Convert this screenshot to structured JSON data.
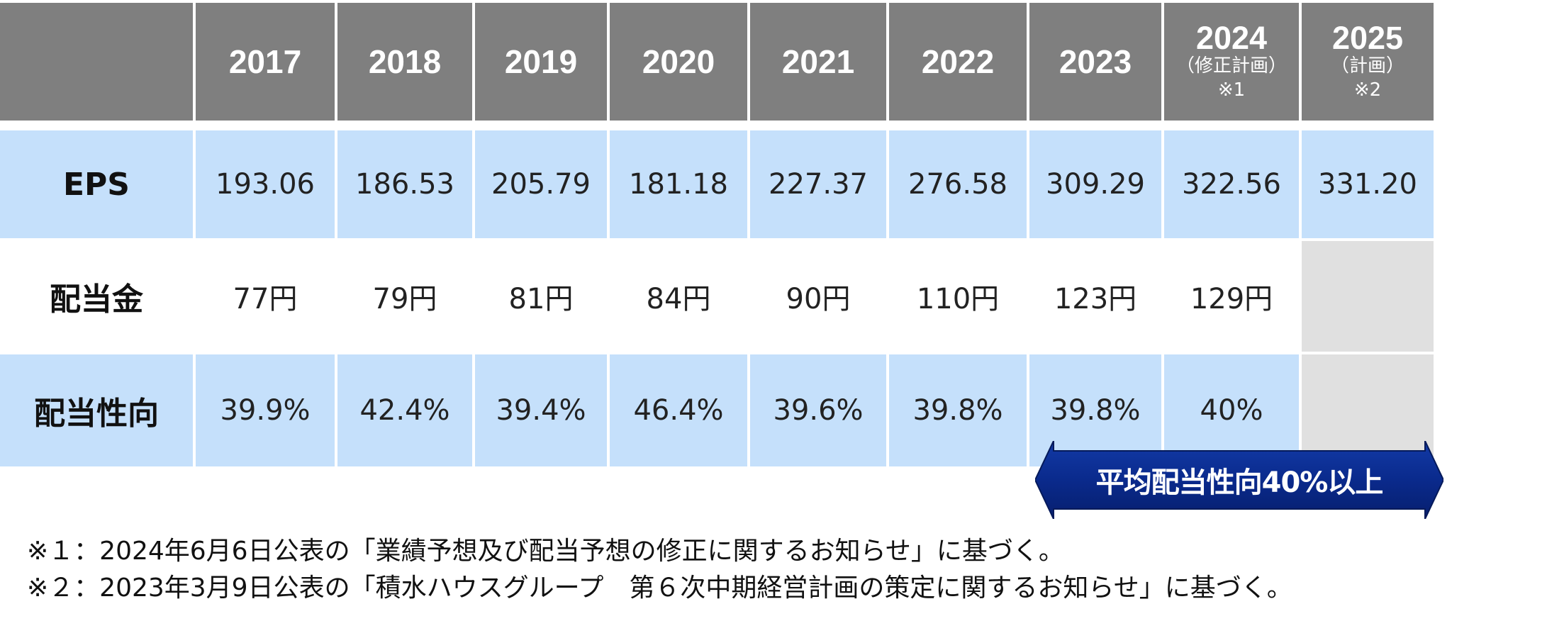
{
  "table": {
    "years": [
      {
        "year": "2017",
        "sub1": "",
        "sub2": ""
      },
      {
        "year": "2018",
        "sub1": "",
        "sub2": ""
      },
      {
        "year": "2019",
        "sub1": "",
        "sub2": ""
      },
      {
        "year": "2020",
        "sub1": "",
        "sub2": ""
      },
      {
        "year": "2021",
        "sub1": "",
        "sub2": ""
      },
      {
        "year": "2022",
        "sub1": "",
        "sub2": ""
      },
      {
        "year": "2023",
        "sub1": "",
        "sub2": ""
      },
      {
        "year": "2024",
        "sub1": "（修正計画）",
        "sub2": "※1"
      },
      {
        "year": "2025",
        "sub1": "（計画）",
        "sub2": "※2"
      }
    ],
    "rows": [
      {
        "label": "EPS",
        "values": [
          "193.06",
          "186.53",
          "205.79",
          "181.18",
          "227.37",
          "276.58",
          "309.29",
          "322.56",
          "331.20"
        ]
      },
      {
        "label": "配当金",
        "values": [
          "77円",
          "79円",
          "81円",
          "84円",
          "90円",
          "110円",
          "123円",
          "129円",
          ""
        ]
      },
      {
        "label": "配当性向",
        "values": [
          "39.9%",
          "42.4%",
          "39.4%",
          "46.4%",
          "39.6%",
          "39.8%",
          "39.8%",
          "40%",
          ""
        ]
      }
    ]
  },
  "arrow_banner": {
    "text": "平均配当性向40%以上",
    "color": "#0a2a8c"
  },
  "notes": [
    "※１：2024年6月6日公表の「業績予想及び配当予想の修正に関するお知らせ」に基づく。",
    "※２：2023年3月9日公表の「積水ハウスグループ　第６次中期経営計画の策定に関するお知らせ」に基づく。"
  ],
  "colors": {
    "header": "#7f7f7f",
    "blue_row": "#c5e0fb",
    "empty_cell": "#e0e0e0"
  }
}
